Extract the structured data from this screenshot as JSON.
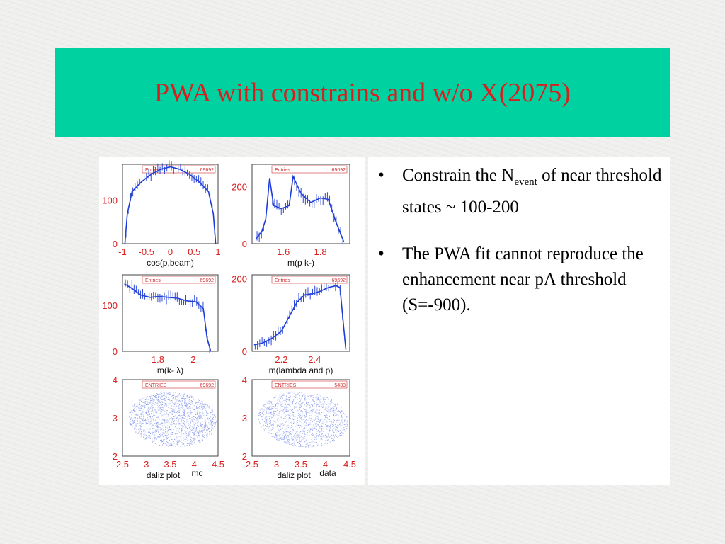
{
  "slide": {
    "title": "PWA with constrains and w/o X(2075)",
    "colors": {
      "title_bar": "#00d1a0",
      "title_text": "#d81e1e",
      "fit_line": "#1a3adb",
      "points": "#2d49d6",
      "axis_text": "#d81e1e"
    }
  },
  "bullets": [
    {
      "prefix": "Constrain the N",
      "sub": "event",
      "suffix": " of near threshold states ~ 100-200"
    },
    {
      "text": "The PWA fit cannot reproduce the enhancement near pΛ threshold (S=-900)."
    }
  ],
  "figure": {
    "panels": [
      {
        "stat_label": "Entries",
        "stat_value": "69692",
        "xlabel": "cos(p,beam)",
        "xticks": [
          "-1",
          "-0.5",
          "0",
          "0.5",
          "1"
        ],
        "yticks": [
          "100",
          "0"
        ]
      },
      {
        "stat_label": "Entries",
        "stat_value": "69692",
        "xlabel": "m(p k-)",
        "xticks": [
          "1.6",
          "1.8"
        ],
        "yticks": [
          "200",
          "0"
        ]
      },
      {
        "stat_label": "Entries",
        "stat_value": "69692",
        "xlabel": "m(k- λ)",
        "xticks": [
          "1.8",
          "2"
        ],
        "yticks": [
          "100",
          "0"
        ]
      },
      {
        "stat_label": "Entries",
        "stat_value": "69692",
        "xlabel": "m(lambda and p)",
        "xticks": [
          "2.2",
          "2.4"
        ],
        "yticks": [
          "200",
          "0"
        ]
      },
      {
        "stat_label": "ENTRIES",
        "stat_value": "69692",
        "xlabel": "daliz plot",
        "tag": "mc",
        "xticks": [
          "2.5",
          "3",
          "3.5",
          "4",
          "4.5"
        ],
        "yticks": [
          "4",
          "3",
          "2"
        ]
      },
      {
        "stat_label": "ENTRIES",
        "stat_value": "5433",
        "xlabel": "daliz plot",
        "tag": "data",
        "xticks": [
          "2.5",
          "3",
          "3.5",
          "4",
          "4.5"
        ],
        "yticks": [
          "4",
          "3",
          "2"
        ]
      }
    ]
  },
  "chart_data": [
    {
      "type": "line",
      "title": "",
      "xlabel": "cos(p,beam)",
      "ylabel": "",
      "xlim": [
        -1,
        1
      ],
      "ylim": [
        0,
        160
      ],
      "series": [
        {
          "values": [
            [
              -0.95,
              0
            ],
            [
              -0.9,
              60
            ],
            [
              -0.8,
              105
            ],
            [
              -0.6,
              125
            ],
            [
              -0.4,
              140
            ],
            [
              -0.2,
              150
            ],
            [
              0,
              155
            ],
            [
              0.2,
              150
            ],
            [
              0.4,
              140
            ],
            [
              0.6,
              125
            ],
            [
              0.8,
              105
            ],
            [
              0.9,
              60
            ],
            [
              0.95,
              0
            ]
          ]
        }
      ]
    },
    {
      "type": "line",
      "title": "",
      "xlabel": "m(p k-)",
      "ylabel": "",
      "xlim": [
        1.45,
        1.95
      ],
      "ylim": [
        0,
        260
      ],
      "series": [
        {
          "values": [
            [
              1.47,
              15
            ],
            [
              1.5,
              40
            ],
            [
              1.52,
              80
            ],
            [
              1.54,
              215
            ],
            [
              1.56,
              125
            ],
            [
              1.6,
              115
            ],
            [
              1.64,
              125
            ],
            [
              1.66,
              220
            ],
            [
              1.7,
              165
            ],
            [
              1.75,
              135
            ],
            [
              1.8,
              150
            ],
            [
              1.84,
              145
            ],
            [
              1.88,
              70
            ],
            [
              1.92,
              5
            ]
          ]
        }
      ]
    },
    {
      "type": "line",
      "title": "",
      "xlabel": "m(k- λ)",
      "ylabel": "",
      "xlim": [
        1.6,
        2.12
      ],
      "ylim": [
        0,
        170
      ],
      "series": [
        {
          "values": [
            [
              1.61,
              150
            ],
            [
              1.65,
              140
            ],
            [
              1.7,
              125
            ],
            [
              1.75,
              120
            ],
            [
              1.8,
              122
            ],
            [
              1.85,
              120
            ],
            [
              1.9,
              118
            ],
            [
              1.95,
              112
            ],
            [
              2.0,
              110
            ],
            [
              2.04,
              95
            ],
            [
              2.06,
              30
            ],
            [
              2.08,
              0
            ]
          ]
        }
      ]
    },
    {
      "type": "line",
      "title": "",
      "xlabel": "m(lambda and p)",
      "ylabel": "",
      "xlim": [
        2.05,
        2.55
      ],
      "ylim": [
        0,
        210
      ],
      "series": [
        {
          "values": [
            [
              2.06,
              18
            ],
            [
              2.1,
              22
            ],
            [
              2.15,
              35
            ],
            [
              2.2,
              55
            ],
            [
              2.24,
              95
            ],
            [
              2.28,
              135
            ],
            [
              2.32,
              155
            ],
            [
              2.36,
              158
            ],
            [
              2.4,
              165
            ],
            [
              2.44,
              175
            ],
            [
              2.48,
              180
            ],
            [
              2.5,
              175
            ],
            [
              2.52,
              60
            ],
            [
              2.53,
              5
            ]
          ]
        }
      ]
    },
    {
      "type": "scatter",
      "title": "",
      "xlabel": "daliz plot",
      "ylabel": "",
      "xlim": [
        2.5,
        4.5
      ],
      "ylim": [
        2,
        4
      ],
      "series": [
        {
          "name": "mc",
          "entries": 69692
        }
      ]
    },
    {
      "type": "scatter",
      "title": "",
      "xlabel": "daliz plot",
      "ylabel": "",
      "xlim": [
        2.5,
        4.5
      ],
      "ylim": [
        2,
        4
      ],
      "series": [
        {
          "name": "data",
          "entries": 5433
        }
      ]
    }
  ]
}
